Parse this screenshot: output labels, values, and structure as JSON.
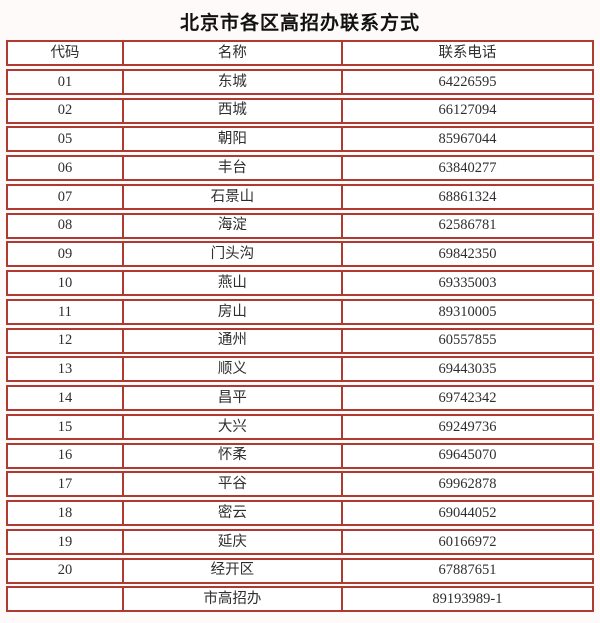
{
  "page": {
    "title": "北京市各区高招办联系方式"
  },
  "colors": {
    "table_border": "#ae3a30",
    "text": "#2e2e2e",
    "cell_background": "#ffffff"
  },
  "table": {
    "columns": [
      "代码",
      "名称",
      "联系电话"
    ],
    "rows": [
      {
        "code": "01",
        "name": "东城",
        "phone": "64226595"
      },
      {
        "code": "02",
        "name": "西城",
        "phone": "66127094"
      },
      {
        "code": "05",
        "name": "朝阳",
        "phone": "85967044"
      },
      {
        "code": "06",
        "name": "丰台",
        "phone": "63840277"
      },
      {
        "code": "07",
        "name": "石景山",
        "phone": "68861324"
      },
      {
        "code": "08",
        "name": "海淀",
        "phone": "62586781"
      },
      {
        "code": "09",
        "name": "门头沟",
        "phone": "69842350"
      },
      {
        "code": "10",
        "name": "燕山",
        "phone": "69335003"
      },
      {
        "code": "11",
        "name": "房山",
        "phone": "89310005"
      },
      {
        "code": "12",
        "name": "通州",
        "phone": "60557855"
      },
      {
        "code": "13",
        "name": "顺义",
        "phone": "69443035"
      },
      {
        "code": "14",
        "name": "昌平",
        "phone": "69742342"
      },
      {
        "code": "15",
        "name": "大兴",
        "phone": "69249736"
      },
      {
        "code": "16",
        "name": "怀柔",
        "phone": "69645070"
      },
      {
        "code": "17",
        "name": "平谷",
        "phone": "69962878"
      },
      {
        "code": "18",
        "name": "密云",
        "phone": "69044052"
      },
      {
        "code": "19",
        "name": "延庆",
        "phone": "60166972"
      },
      {
        "code": "20",
        "name": "经开区",
        "phone": "67887651"
      },
      {
        "code": "",
        "name": "市高招办",
        "phone": "89193989-1"
      }
    ]
  }
}
